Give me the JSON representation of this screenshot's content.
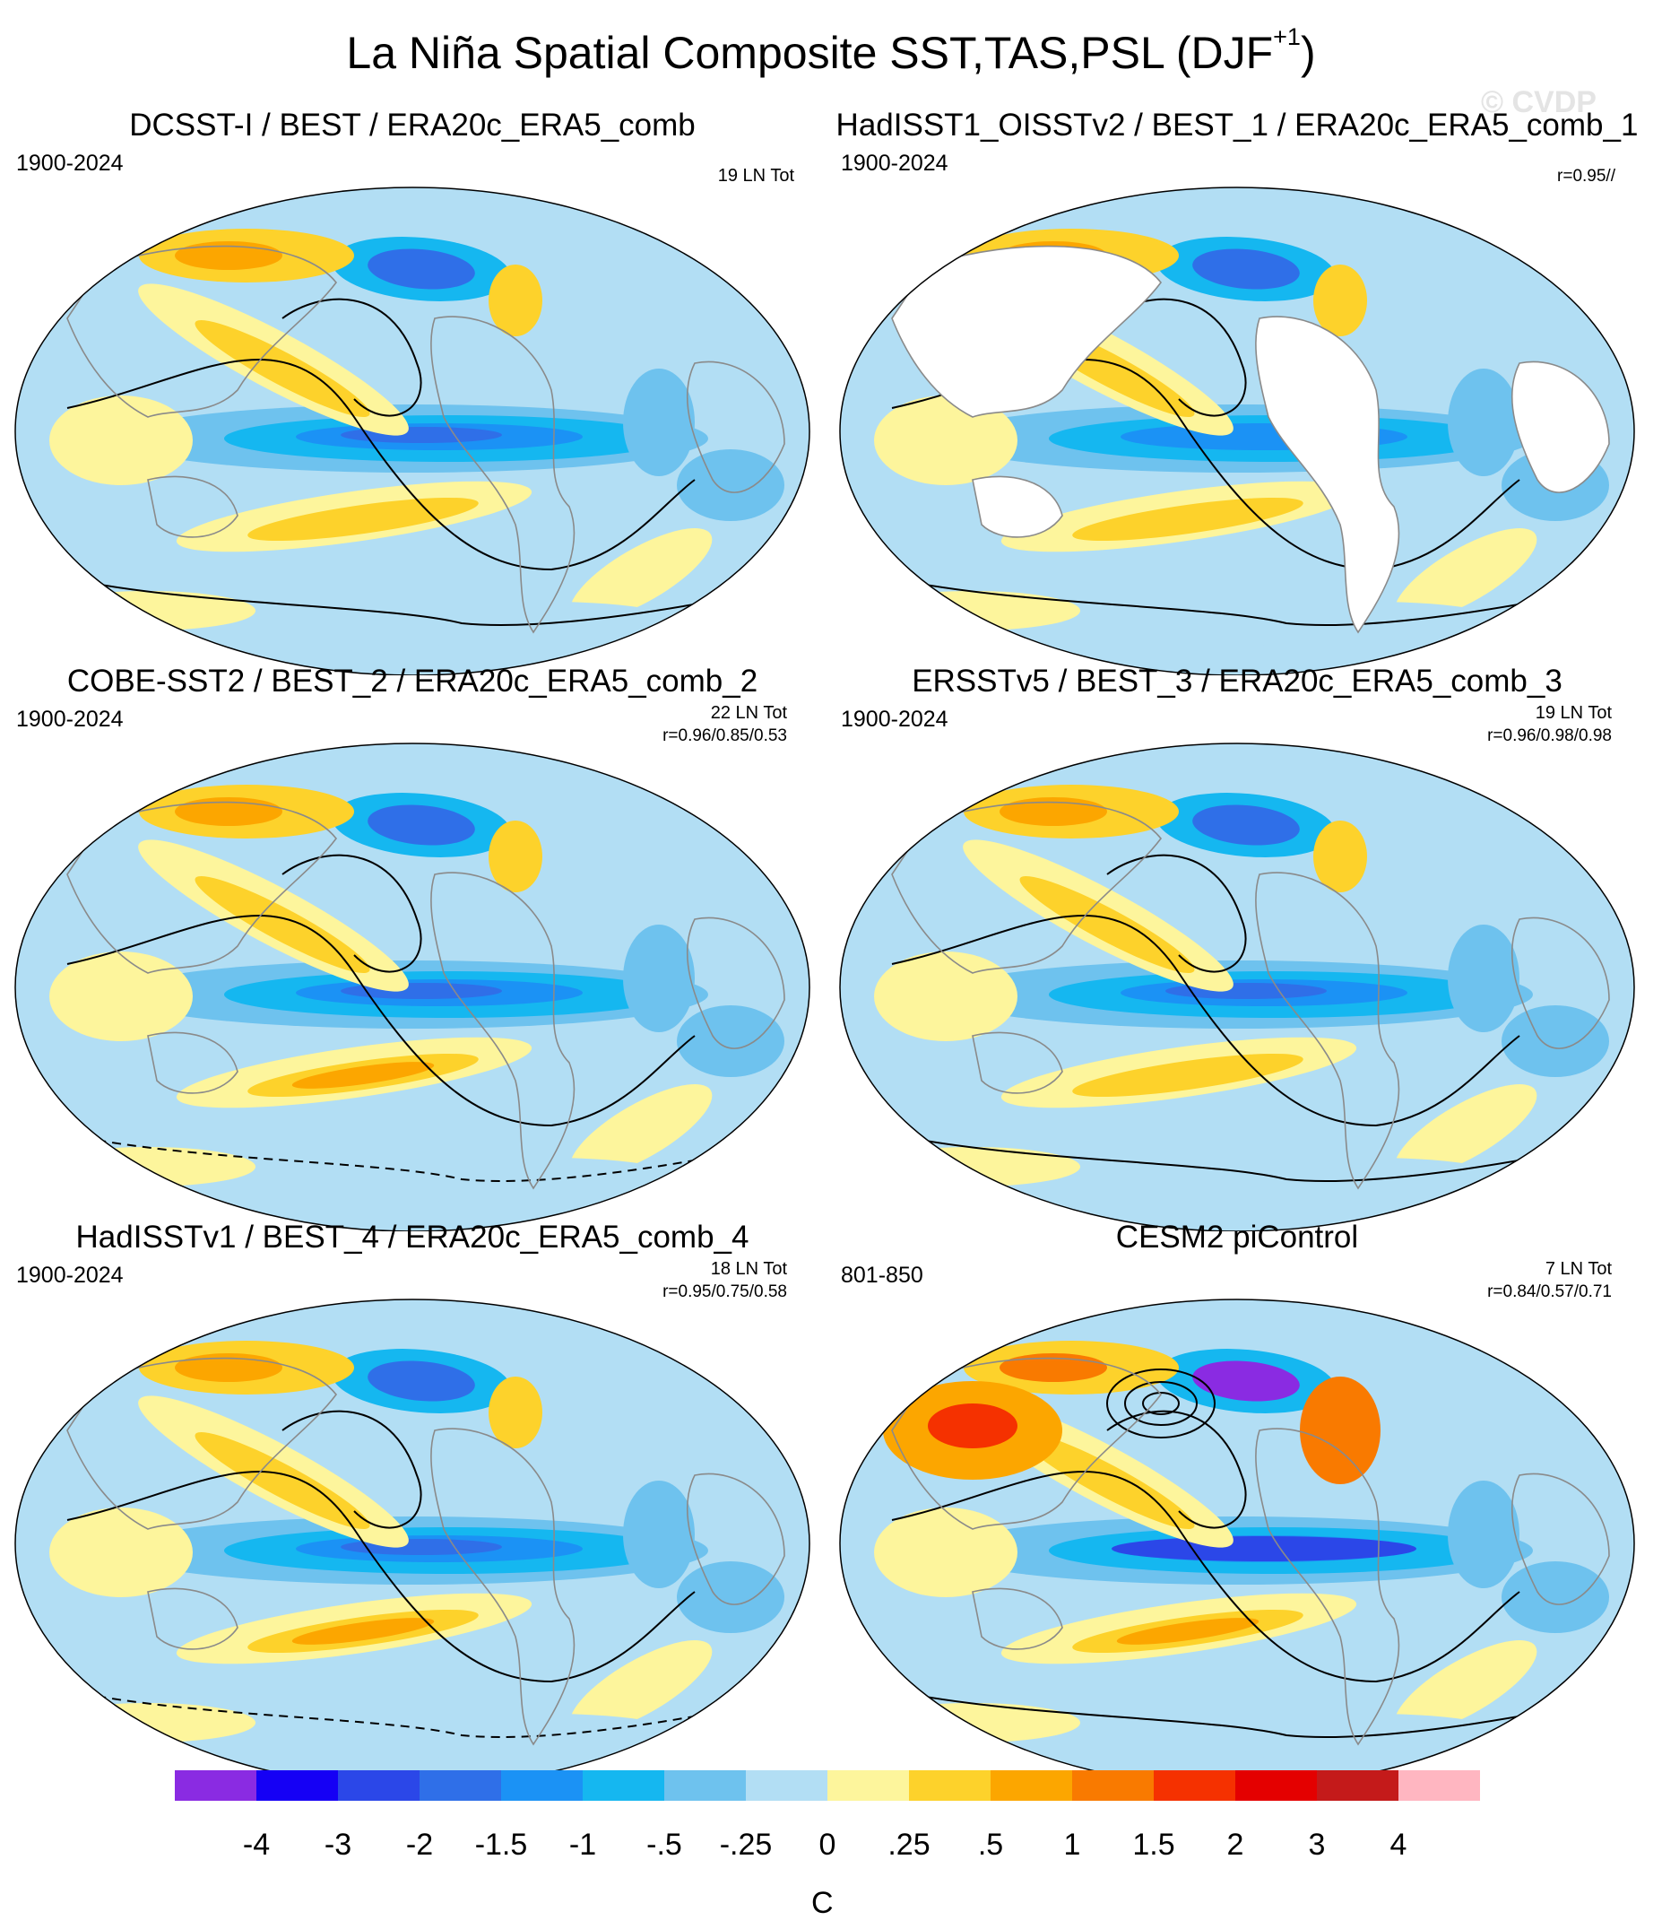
{
  "title": "La Niña Spatial Composite SST,TAS,PSL (DJF",
  "title_sup": "+1",
  "title_close": ")",
  "watermark": "© CVDP",
  "chart_data": {
    "type": "heatmap",
    "units": "C",
    "panels": [
      {
        "title": "DCSST-I / BEST / ERA20c_ERA5_comb",
        "years": "1900-2024",
        "count": "19 LN Tot",
        "corr": "",
        "land_masked": false,
        "variant": 0
      },
      {
        "title": "HadISST1_OISSTv2 / BEST_1 / ERA20c_ERA5_comb_1",
        "years": "1900-2024",
        "count": "",
        "corr": "r=0.95//",
        "land_masked": true,
        "variant": 1
      },
      {
        "title": "COBE-SST2 / BEST_2 / ERA20c_ERA5_comb_2",
        "years": "1900-2024",
        "count": "22 LN Tot",
        "corr": "r=0.96/0.85/0.53",
        "land_masked": false,
        "variant": 2
      },
      {
        "title": "ERSSTv5 / BEST_3 / ERA20c_ERA5_comb_3",
        "years": "1900-2024",
        "count": "19 LN Tot",
        "corr": "r=0.96/0.98/0.98",
        "land_masked": false,
        "variant": 3
      },
      {
        "title": "HadISSTv1 / BEST_4 / ERA20c_ERA5_comb_4",
        "years": "1900-2024",
        "count": "18 LN Tot",
        "corr": "r=0.95/0.75/0.58",
        "land_masked": false,
        "variant": 4
      },
      {
        "title": "CESM2 piControl",
        "years": "801-850",
        "count": "7 LN Tot",
        "corr": "r=0.84/0.57/0.71",
        "land_masked": false,
        "variant": 5
      }
    ],
    "colorbar": {
      "levels": [
        "-4",
        "-3",
        "-2",
        "-1.5",
        "-1",
        "-.5",
        "-.25",
        "0",
        ".25",
        ".5",
        "1",
        "1.5",
        "2",
        "3",
        "4"
      ],
      "colors": [
        "#8a2be2",
        "#1500f5",
        "#2b47e8",
        "#2f6fe8",
        "#1b92f5",
        "#15b7f0",
        "#6ec2ee",
        "#b2def4",
        "#fdf59c",
        "#fdd22b",
        "#fca600",
        "#f97a00",
        "#f53100",
        "#e40000",
        "#c41a1a",
        "#ffb6c1"
      ]
    }
  }
}
